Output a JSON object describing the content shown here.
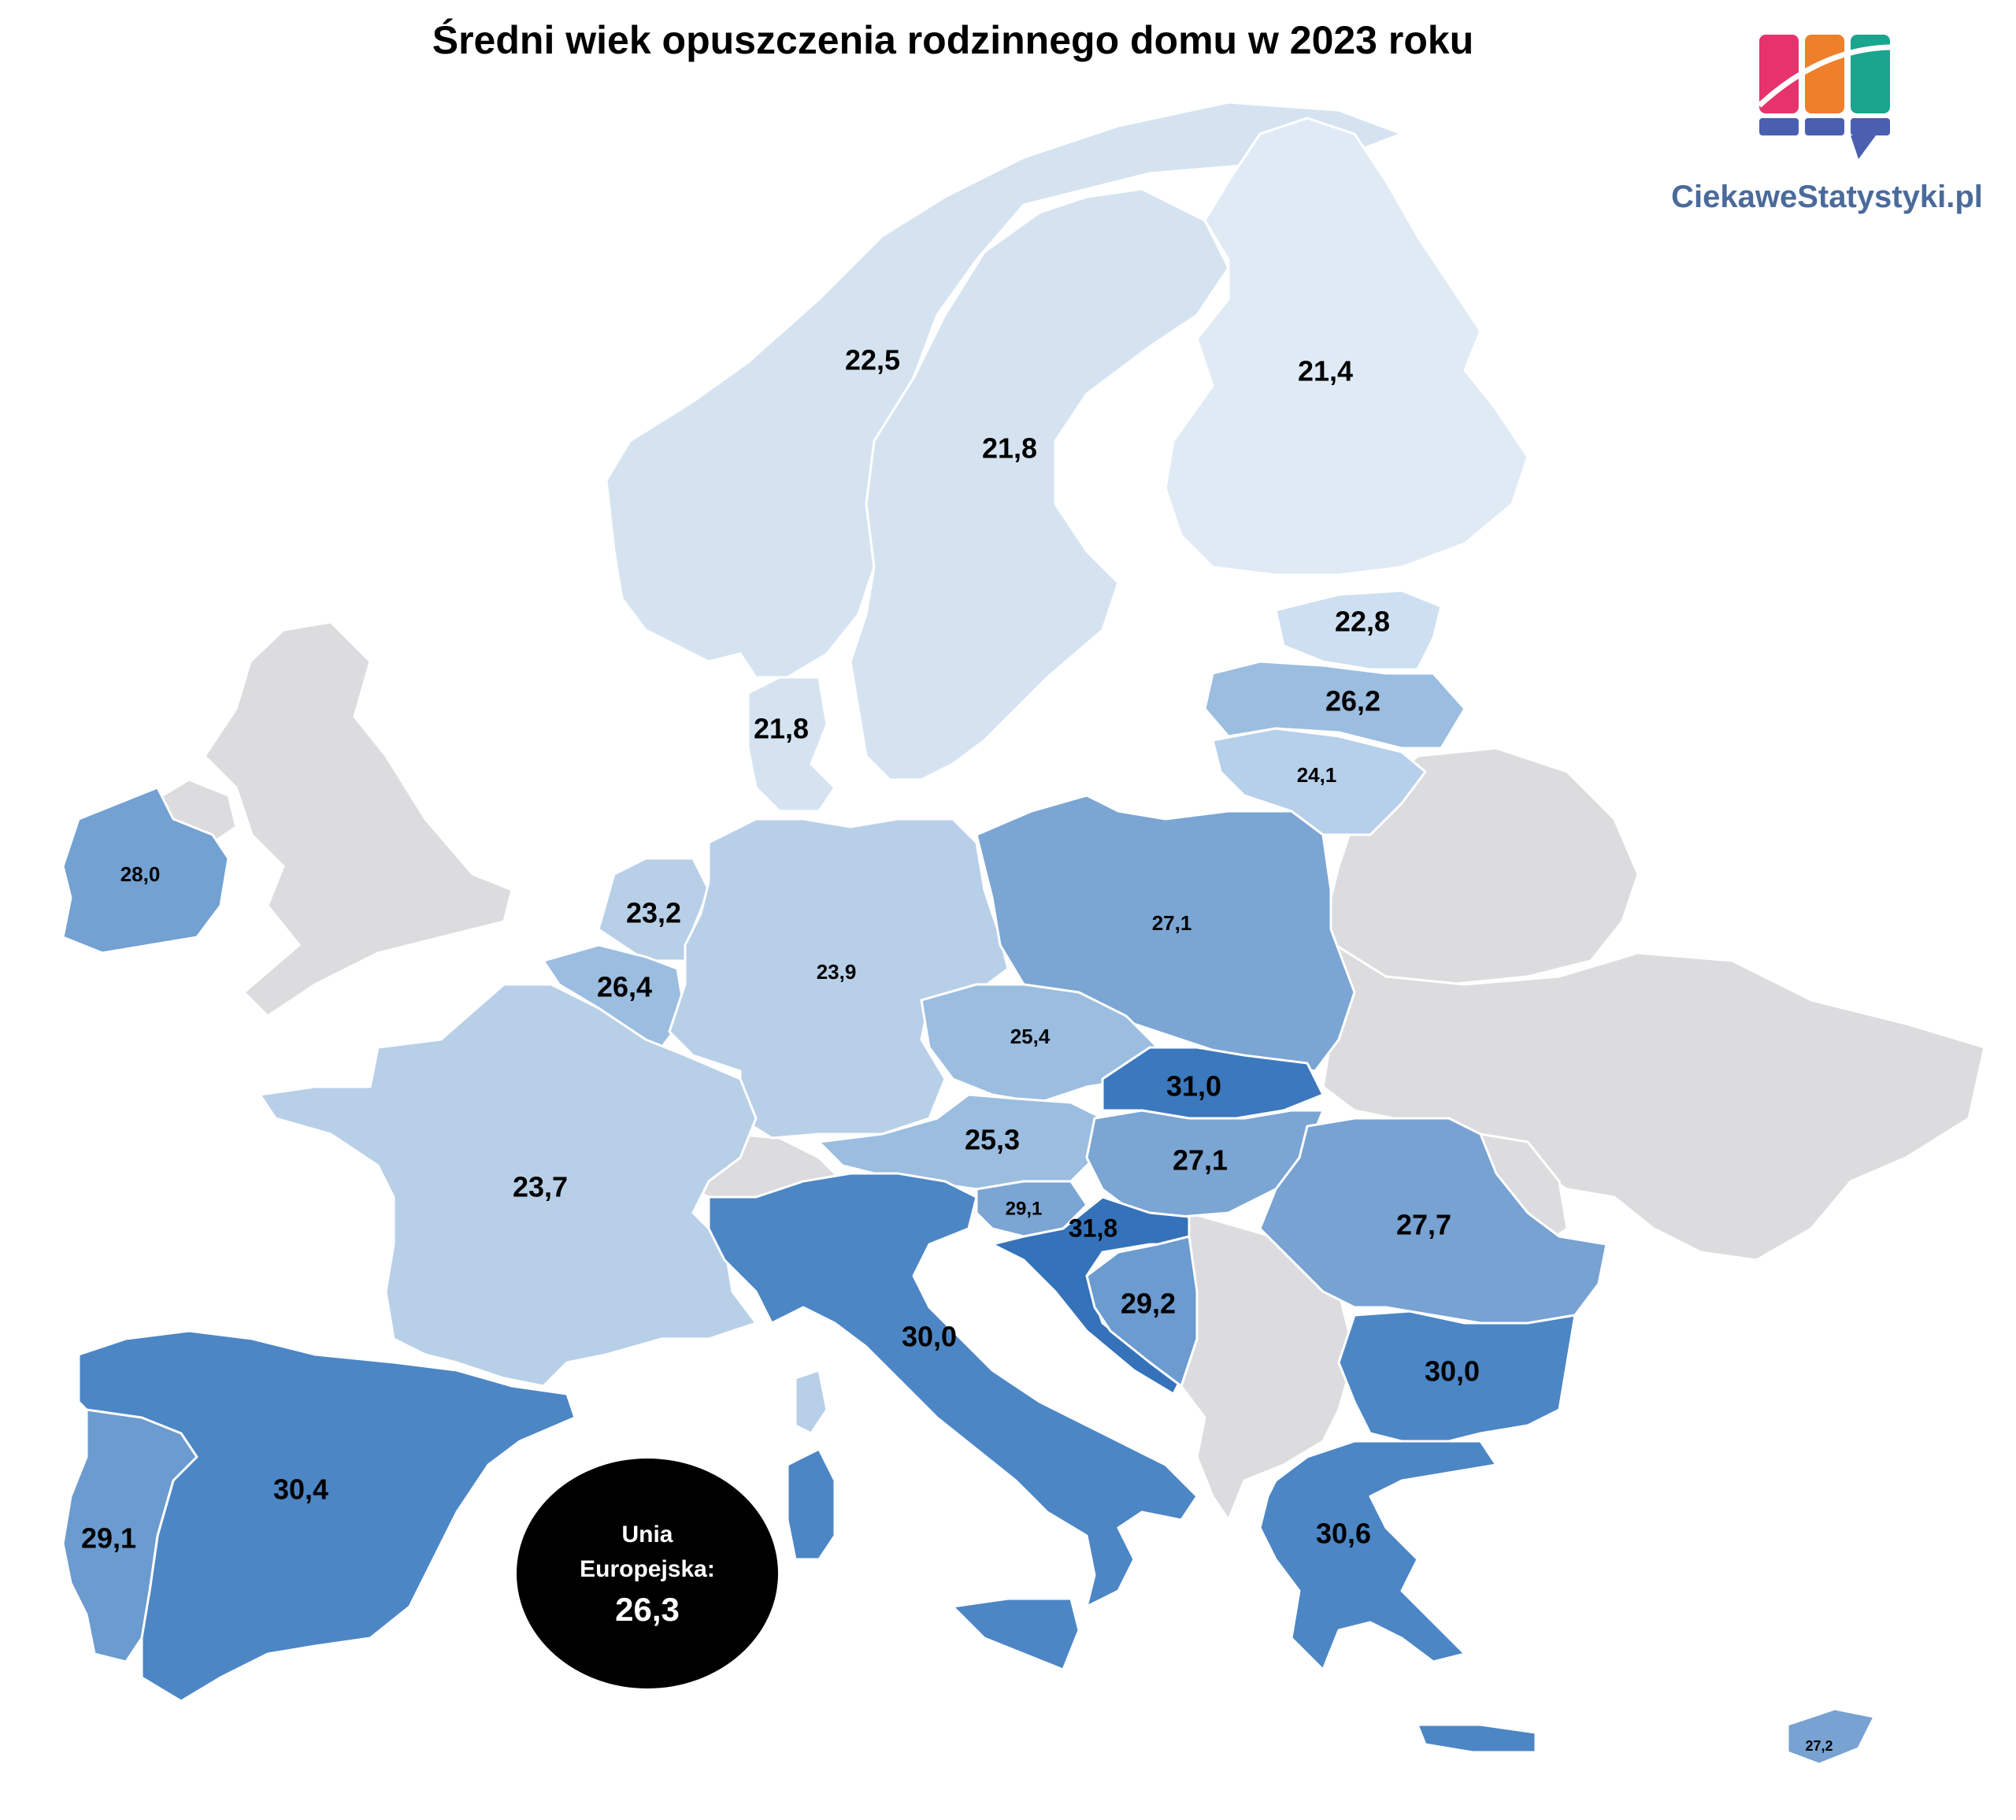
{
  "title": "Średni wiek opuszczenia rodzinnego domu w 2023 roku",
  "brand": "CiekaweStatystyki.pl",
  "eu_average": {
    "line1": "Unia",
    "line2": "Europejska:",
    "value": "26,3"
  },
  "colors": {
    "scale_light": "#dfe9f5",
    "scale_dark": "#2f6cb4",
    "no_data": "#dcdcde",
    "bubble": "#000000"
  },
  "countries": [
    {
      "id": "norway",
      "value": "22,5"
    },
    {
      "id": "finland",
      "value": "21,4"
    },
    {
      "id": "sweden",
      "value": "21,8"
    },
    {
      "id": "estonia",
      "value": "22,8"
    },
    {
      "id": "latvia",
      "value": "26,2"
    },
    {
      "id": "lithuania",
      "value": "24,1"
    },
    {
      "id": "denmark",
      "value": "21,8"
    },
    {
      "id": "ireland",
      "value": "28,0"
    },
    {
      "id": "netherlands",
      "value": "23,2"
    },
    {
      "id": "belgium",
      "value": "26,4"
    },
    {
      "id": "germany",
      "value": "23,9"
    },
    {
      "id": "poland",
      "value": "27,1"
    },
    {
      "id": "czechia",
      "value": "25,4"
    },
    {
      "id": "slovakia",
      "value": "31,0"
    },
    {
      "id": "austria",
      "value": "25,3"
    },
    {
      "id": "hungary",
      "value": "27,1"
    },
    {
      "id": "france",
      "value": "23,7"
    },
    {
      "id": "slovenia",
      "value": "29,1"
    },
    {
      "id": "croatia",
      "value": "31,8"
    },
    {
      "id": "serbia",
      "value": "29,2"
    },
    {
      "id": "romania",
      "value": "27,7"
    },
    {
      "id": "italy",
      "value": "30,0"
    },
    {
      "id": "bulgaria",
      "value": "30,0"
    },
    {
      "id": "spain",
      "value": "30,4"
    },
    {
      "id": "portugal",
      "value": "29,1"
    },
    {
      "id": "greece",
      "value": "30,6"
    },
    {
      "id": "cyprus",
      "value": "27,2"
    }
  ]
}
